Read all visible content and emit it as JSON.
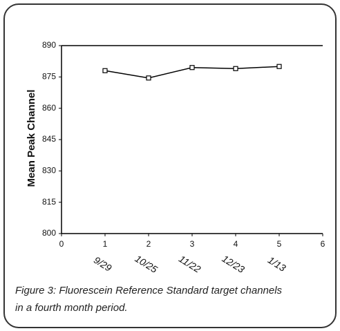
{
  "chart_data": {
    "type": "line",
    "y_label": "Mean Peak Channel",
    "x": [
      1,
      2,
      3,
      4,
      5
    ],
    "x_labels": [
      "9/29",
      "10/25",
      "11/22",
      "12/23",
      "1/13"
    ],
    "series": [
      {
        "color": "#000000",
        "values": [
          878,
          874.5,
          879.5,
          879,
          880
        ]
      }
    ],
    "xlim": [
      0,
      6
    ],
    "xticks": [
      0,
      1,
      2,
      3,
      4,
      5,
      6
    ],
    "ylim": [
      800,
      890
    ],
    "yticks": [
      800,
      815,
      830,
      845,
      860,
      875,
      890
    ],
    "caption_lines": [
      "Figure 3: Fluorescein Reference Standard target channels",
      "in a fourth month period."
    ]
  }
}
